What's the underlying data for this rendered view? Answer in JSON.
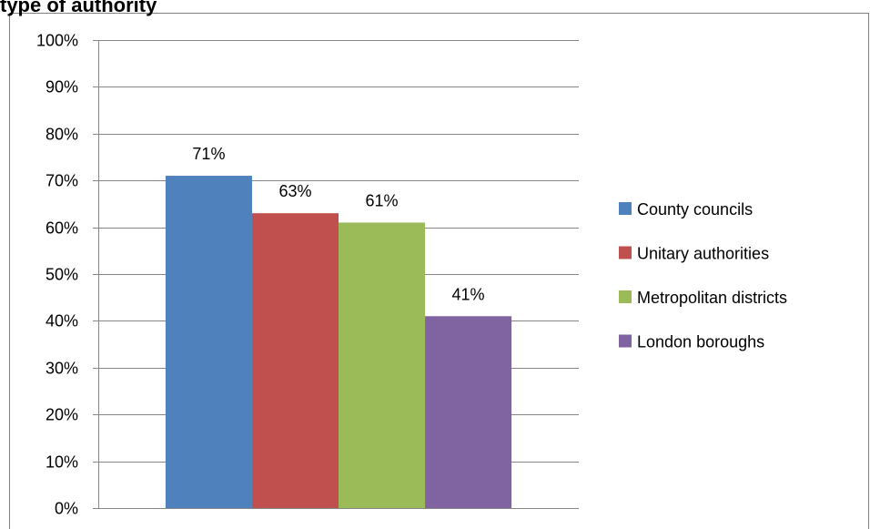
{
  "chart_data": {
    "type": "bar",
    "title": "type of authority",
    "categories": [
      null
    ],
    "series": [
      {
        "name": "County councils",
        "color": "#4f81bd",
        "values": [
          71
        ],
        "value_labels": [
          "71%"
        ]
      },
      {
        "name": "Unitary authorities",
        "color": "#c0504d",
        "values": [
          63
        ],
        "value_labels": [
          "63%"
        ]
      },
      {
        "name": "Metropolitan districts",
        "color": "#9bbb59",
        "values": [
          61
        ],
        "value_labels": [
          "61%"
        ]
      },
      {
        "name": "London boroughs",
        "color": "#8064a2",
        "values": [
          41
        ],
        "value_labels": [
          "41%"
        ]
      }
    ],
    "ylim": [
      0,
      100
    ],
    "yticks": [
      {
        "value": 0,
        "label": "0%"
      },
      {
        "value": 10,
        "label": "10%"
      },
      {
        "value": 20,
        "label": "20%"
      },
      {
        "value": 30,
        "label": "30%"
      },
      {
        "value": 40,
        "label": "40%"
      },
      {
        "value": 50,
        "label": "50%"
      },
      {
        "value": 60,
        "label": "60%"
      },
      {
        "value": 70,
        "label": "70%"
      },
      {
        "value": 80,
        "label": "80%"
      },
      {
        "value": 90,
        "label": "90%"
      },
      {
        "value": 100,
        "label": "100%"
      }
    ],
    "grid": true,
    "legend": "right"
  }
}
